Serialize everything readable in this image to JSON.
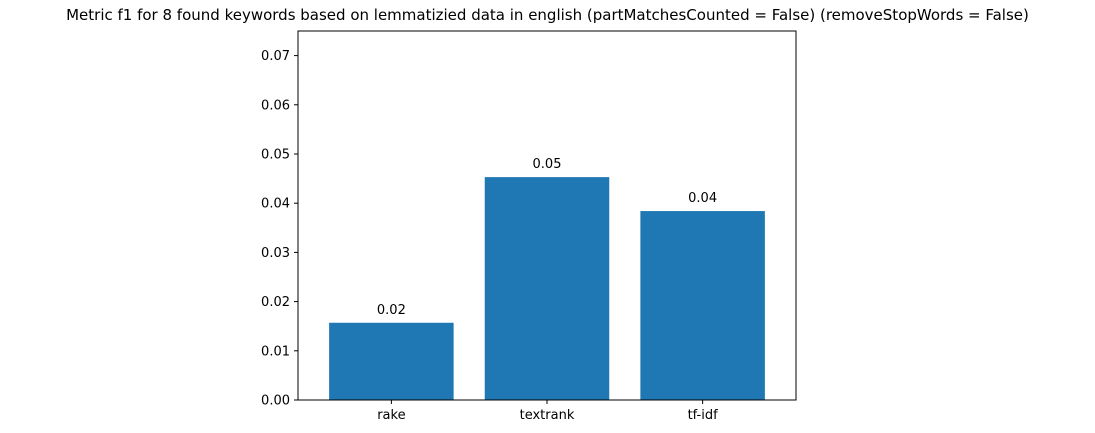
{
  "chart_data": {
    "type": "bar",
    "title": "Metric f1 for 8 found keywords based on lemmatizied data in english (partMatchesCounted = False) (removeStopWords = False)",
    "xlabel": "",
    "ylabel": "",
    "categories": [
      "rake",
      "textrank",
      "tf-idf"
    ],
    "values": [
      0.0157,
      0.0453,
      0.0384
    ],
    "data_labels": [
      "0.02",
      "0.05",
      "0.04"
    ],
    "ylim": [
      0,
      0.075
    ],
    "yticks": [
      0.0,
      0.01,
      0.02,
      0.03,
      0.04,
      0.05,
      0.06,
      0.07
    ],
    "ytick_labels": [
      "0.00",
      "0.01",
      "0.02",
      "0.03",
      "0.04",
      "0.05",
      "0.06",
      "0.07"
    ],
    "bar_color": "#1f77b4",
    "grid": false,
    "legend": "none"
  }
}
